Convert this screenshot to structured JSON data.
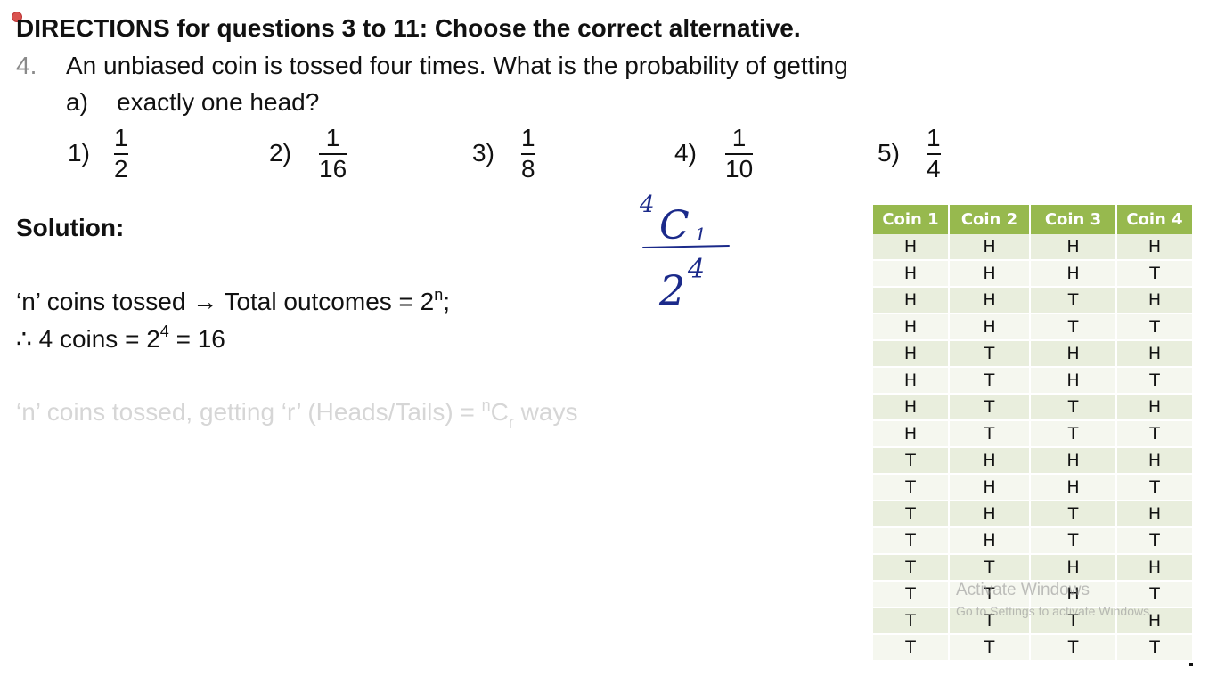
{
  "directions": "DIRECTIONS for questions 3 to 11: Choose the correct alternative.",
  "question": {
    "number": "4.",
    "text": "An unbiased coin is tossed four times. What is the probability of getting",
    "sub_label": "a)",
    "sub_text": "exactly one head?"
  },
  "options": [
    {
      "label": "1)",
      "num": "1",
      "den": "2"
    },
    {
      "label": "2)",
      "num": "1",
      "den": "16"
    },
    {
      "label": "3)",
      "num": "1",
      "den": "8"
    },
    {
      "label": "4)",
      "num": "1",
      "den": "10"
    },
    {
      "label": "5)",
      "num": "1",
      "den": "4"
    }
  ],
  "solution": {
    "heading": "Solution:",
    "line1_a": "‘n’ coins tossed → Total outcomes = 2",
    "line1_sup": "n",
    "line1_b": ";",
    "line2_a": "∴ 4 coins = 2",
    "line2_sup": "4",
    "line2_b": " = 16",
    "line3_a": "‘n’ coins tossed, getting ‘r’ (Heads/Tails) = ",
    "line3_sup": "n",
    "line3_c": "C",
    "line3_sub": "r",
    "line3_b": " ways"
  },
  "handwriting": {
    "top_sup": "4",
    "top_main": "C",
    "top_sub": "1",
    "bottom_main": "2",
    "bottom_sup": "4"
  },
  "table": {
    "headers": [
      "Coin 1",
      "Coin 2",
      "Coin 3",
      "Coin 4"
    ],
    "rows": [
      [
        "H",
        "H",
        "H",
        "H"
      ],
      [
        "H",
        "H",
        "H",
        "T"
      ],
      [
        "H",
        "H",
        "T",
        "H"
      ],
      [
        "H",
        "H",
        "T",
        "T"
      ],
      [
        "H",
        "T",
        "H",
        "H"
      ],
      [
        "H",
        "T",
        "H",
        "T"
      ],
      [
        "H",
        "T",
        "T",
        "H"
      ],
      [
        "H",
        "T",
        "T",
        "T"
      ],
      [
        "T",
        "H",
        "H",
        "H"
      ],
      [
        "T",
        "H",
        "H",
        "T"
      ],
      [
        "T",
        "H",
        "T",
        "H"
      ],
      [
        "T",
        "H",
        "T",
        "T"
      ],
      [
        "T",
        "T",
        "H",
        "H"
      ],
      [
        "T",
        "T",
        "H",
        "T"
      ],
      [
        "T",
        "T",
        "T",
        "H"
      ],
      [
        "T",
        "T",
        "T",
        "T"
      ]
    ]
  },
  "watermark": {
    "line1": "Activate Windows",
    "line2": "Go to Settings to activate Windows."
  },
  "colors": {
    "table_header": "#97b94e",
    "row_odd": "#e9eedd",
    "row_even": "#f5f7ef",
    "ink": "#1b2a8a",
    "faded_text": "#d6d6d6"
  }
}
